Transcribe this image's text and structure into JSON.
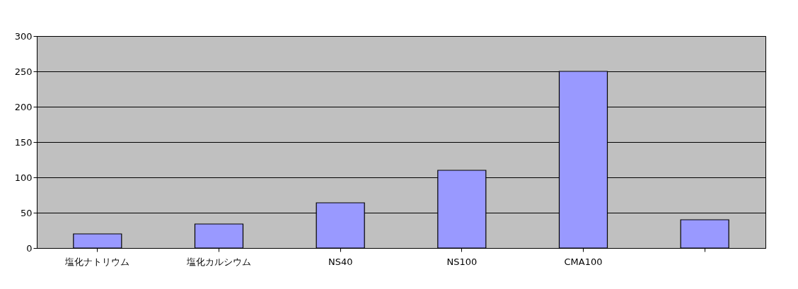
{
  "chart_data": {
    "type": "bar",
    "categories": [
      "塩化ナトリウム",
      "塩化カルシウム",
      "NS40",
      "NS100",
      "CMA100",
      null
    ],
    "values": [
      20,
      34,
      64,
      110,
      250,
      40
    ],
    "color": "#9999ff",
    "ylim": [
      0,
      300
    ],
    "yticks": [
      0,
      50,
      100,
      150,
      200,
      250,
      300
    ],
    "grid": "y"
  }
}
